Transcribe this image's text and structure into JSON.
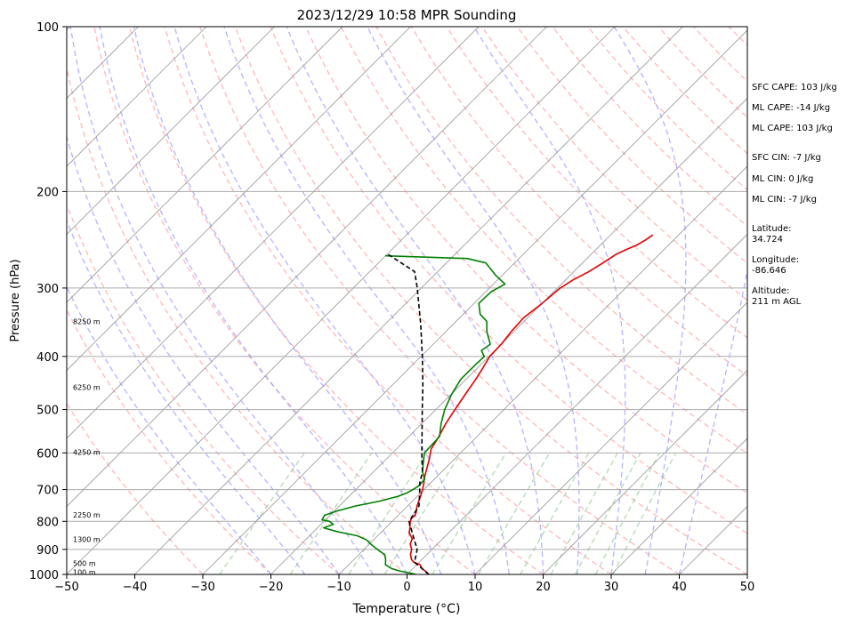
{
  "chart_data": {
    "type": "line",
    "title": "2023/12/29 10:58 MPR Sounding",
    "xlabel": "Temperature (°C)",
    "ylabel": "Pressure (hPa)",
    "xlim": [
      -50,
      50
    ],
    "ylim": [
      1000,
      100
    ],
    "y_scale": "log",
    "x_ticks": [
      "−50",
      "−40",
      "−30",
      "−20",
      "−10",
      "0",
      "10",
      "20",
      "30",
      "40",
      "50"
    ],
    "y_ticks": [
      "100",
      "200",
      "300",
      "400",
      "500",
      "600",
      "700",
      "800",
      "900",
      "1000"
    ],
    "height_labels": [
      {
        "p": 990,
        "text": "100 m"
      },
      {
        "p": 955,
        "text": "500 m"
      },
      {
        "p": 862,
        "text": "1300 m"
      },
      {
        "p": 778,
        "text": "2250 m"
      },
      {
        "p": 598,
        "text": "4250 m"
      },
      {
        "p": 455,
        "text": "6250 m"
      },
      {
        "p": 345,
        "text": "8250 m"
      }
    ],
    "series": [
      {
        "name": "",
        "color": "#e00000",
        "points": [
          [
            1000,
            3.2
          ],
          [
            990,
            2.5
          ],
          [
            975,
            1.3
          ],
          [
            960,
            0.5
          ],
          [
            950,
            -0.8
          ],
          [
            940,
            -1.5
          ],
          [
            920,
            -2.4
          ],
          [
            900,
            -3.0
          ],
          [
            880,
            -4.0
          ],
          [
            860,
            -4.5
          ],
          [
            840,
            -5.8
          ],
          [
            820,
            -6.5
          ],
          [
            810,
            -7.0
          ],
          [
            790,
            -7.6
          ],
          [
            780,
            -7.5
          ],
          [
            770,
            -7.8
          ],
          [
            750,
            -8.6
          ],
          [
            720,
            -9.5
          ],
          [
            700,
            -10.2
          ],
          [
            680,
            -11.0
          ],
          [
            670,
            -11.5
          ],
          [
            650,
            -12.3
          ],
          [
            620,
            -13.5
          ],
          [
            590,
            -14.9
          ],
          [
            560,
            -15.6
          ],
          [
            530,
            -16.5
          ],
          [
            500,
            -17.2
          ],
          [
            470,
            -17.9
          ],
          [
            440,
            -18.6
          ],
          [
            420,
            -19.2
          ],
          [
            400,
            -19.9
          ],
          [
            380,
            -20.0
          ],
          [
            360,
            -20.4
          ],
          [
            340,
            -20.6
          ],
          [
            320,
            -20.0
          ],
          [
            300,
            -19.6
          ],
          [
            290,
            -18.9
          ],
          [
            280,
            -17.8
          ],
          [
            270,
            -17.0
          ],
          [
            260,
            -16.3
          ],
          [
            255,
            -15.5
          ],
          [
            250,
            -14.6
          ],
          [
            245,
            -14.1
          ],
          [
            240,
            -13.8
          ]
        ]
      },
      {
        "name": "",
        "color": "#007f00",
        "points": [
          [
            1000,
            1.3
          ],
          [
            992,
            -0.2
          ],
          [
            985,
            -1.7
          ],
          [
            975,
            -3.2
          ],
          [
            960,
            -4.6
          ],
          [
            940,
            -5.3
          ],
          [
            920,
            -6.2
          ],
          [
            905,
            -7.6
          ],
          [
            885,
            -9.4
          ],
          [
            865,
            -11.0
          ],
          [
            850,
            -13.0
          ],
          [
            835,
            -16.6
          ],
          [
            822,
            -19.1
          ],
          [
            810,
            -18.2
          ],
          [
            800,
            -19.2
          ],
          [
            795,
            -20.5
          ],
          [
            780,
            -20.8
          ],
          [
            765,
            -19.5
          ],
          [
            750,
            -17.6
          ],
          [
            735,
            -14.8
          ],
          [
            720,
            -12.8
          ],
          [
            710,
            -12.0
          ],
          [
            700,
            -11.6
          ],
          [
            690,
            -11.3
          ],
          [
            670,
            -11.4
          ],
          [
            650,
            -12.8
          ],
          [
            620,
            -14.3
          ],
          [
            600,
            -15.3
          ],
          [
            560,
            -15.5
          ],
          [
            530,
            -17.2
          ],
          [
            500,
            -18.7
          ],
          [
            470,
            -19.9
          ],
          [
            440,
            -20.8
          ],
          [
            420,
            -20.8
          ],
          [
            400,
            -20.7
          ],
          [
            390,
            -22.0
          ],
          [
            380,
            -21.6
          ],
          [
            370,
            -22.8
          ],
          [
            360,
            -24.0
          ],
          [
            345,
            -25.5
          ],
          [
            335,
            -27.5
          ],
          [
            320,
            -29.3
          ],
          [
            305,
            -29.2
          ],
          [
            295,
            -28.3
          ],
          [
            285,
            -30.8
          ],
          [
            270,
            -34.2
          ],
          [
            265,
            -37.6
          ],
          [
            262,
            -50.0
          ]
        ]
      },
      {
        "name": "",
        "color": "#000000",
        "dashed": true,
        "points": [
          [
            1000,
            3.2
          ],
          [
            950,
            -0.7
          ],
          [
            900,
            -2.2
          ],
          [
            850,
            -4.8
          ],
          [
            800,
            -7.5
          ],
          [
            750,
            -8.3
          ],
          [
            700,
            -10.6
          ],
          [
            680,
            -11.6
          ],
          [
            650,
            -12.8
          ],
          [
            600,
            -15.7
          ],
          [
            550,
            -18.7
          ],
          [
            500,
            -22.0
          ],
          [
            450,
            -25.6
          ],
          [
            400,
            -29.8
          ],
          [
            350,
            -34.7
          ],
          [
            300,
            -40.6
          ],
          [
            280,
            -43.4
          ],
          [
            260,
            -50.0
          ]
        ]
      }
    ],
    "background_lines": [
      {
        "kind": "isotherms",
        "color": "#999999"
      },
      {
        "kind": "dry adiabats",
        "color": "#ff9999",
        "dashed": true
      },
      {
        "kind": "moist adiabats",
        "color": "#9999ff",
        "dashed": true
      },
      {
        "kind": "mixing ratio",
        "color": "#99cc99",
        "dashed": true
      }
    ]
  },
  "annotations": {
    "sfc_cape": "SFC CAPE: 103 J/kg",
    "ml_cape_1": "ML CAPE: -14 J/kg",
    "ml_cape_2": "ML CAPE: 103 J/kg",
    "sfc_cin": "SFC CIN: -7 J/kg",
    "ml_cin_1": "ML CIN: 0 J/kg",
    "ml_cin_2": "ML CIN: -7 J/kg",
    "latitude": "Latitude:\n34.724",
    "longitude": "Longitude:\n-86.646",
    "altitude": "Altitude:\n211 m AGL"
  }
}
